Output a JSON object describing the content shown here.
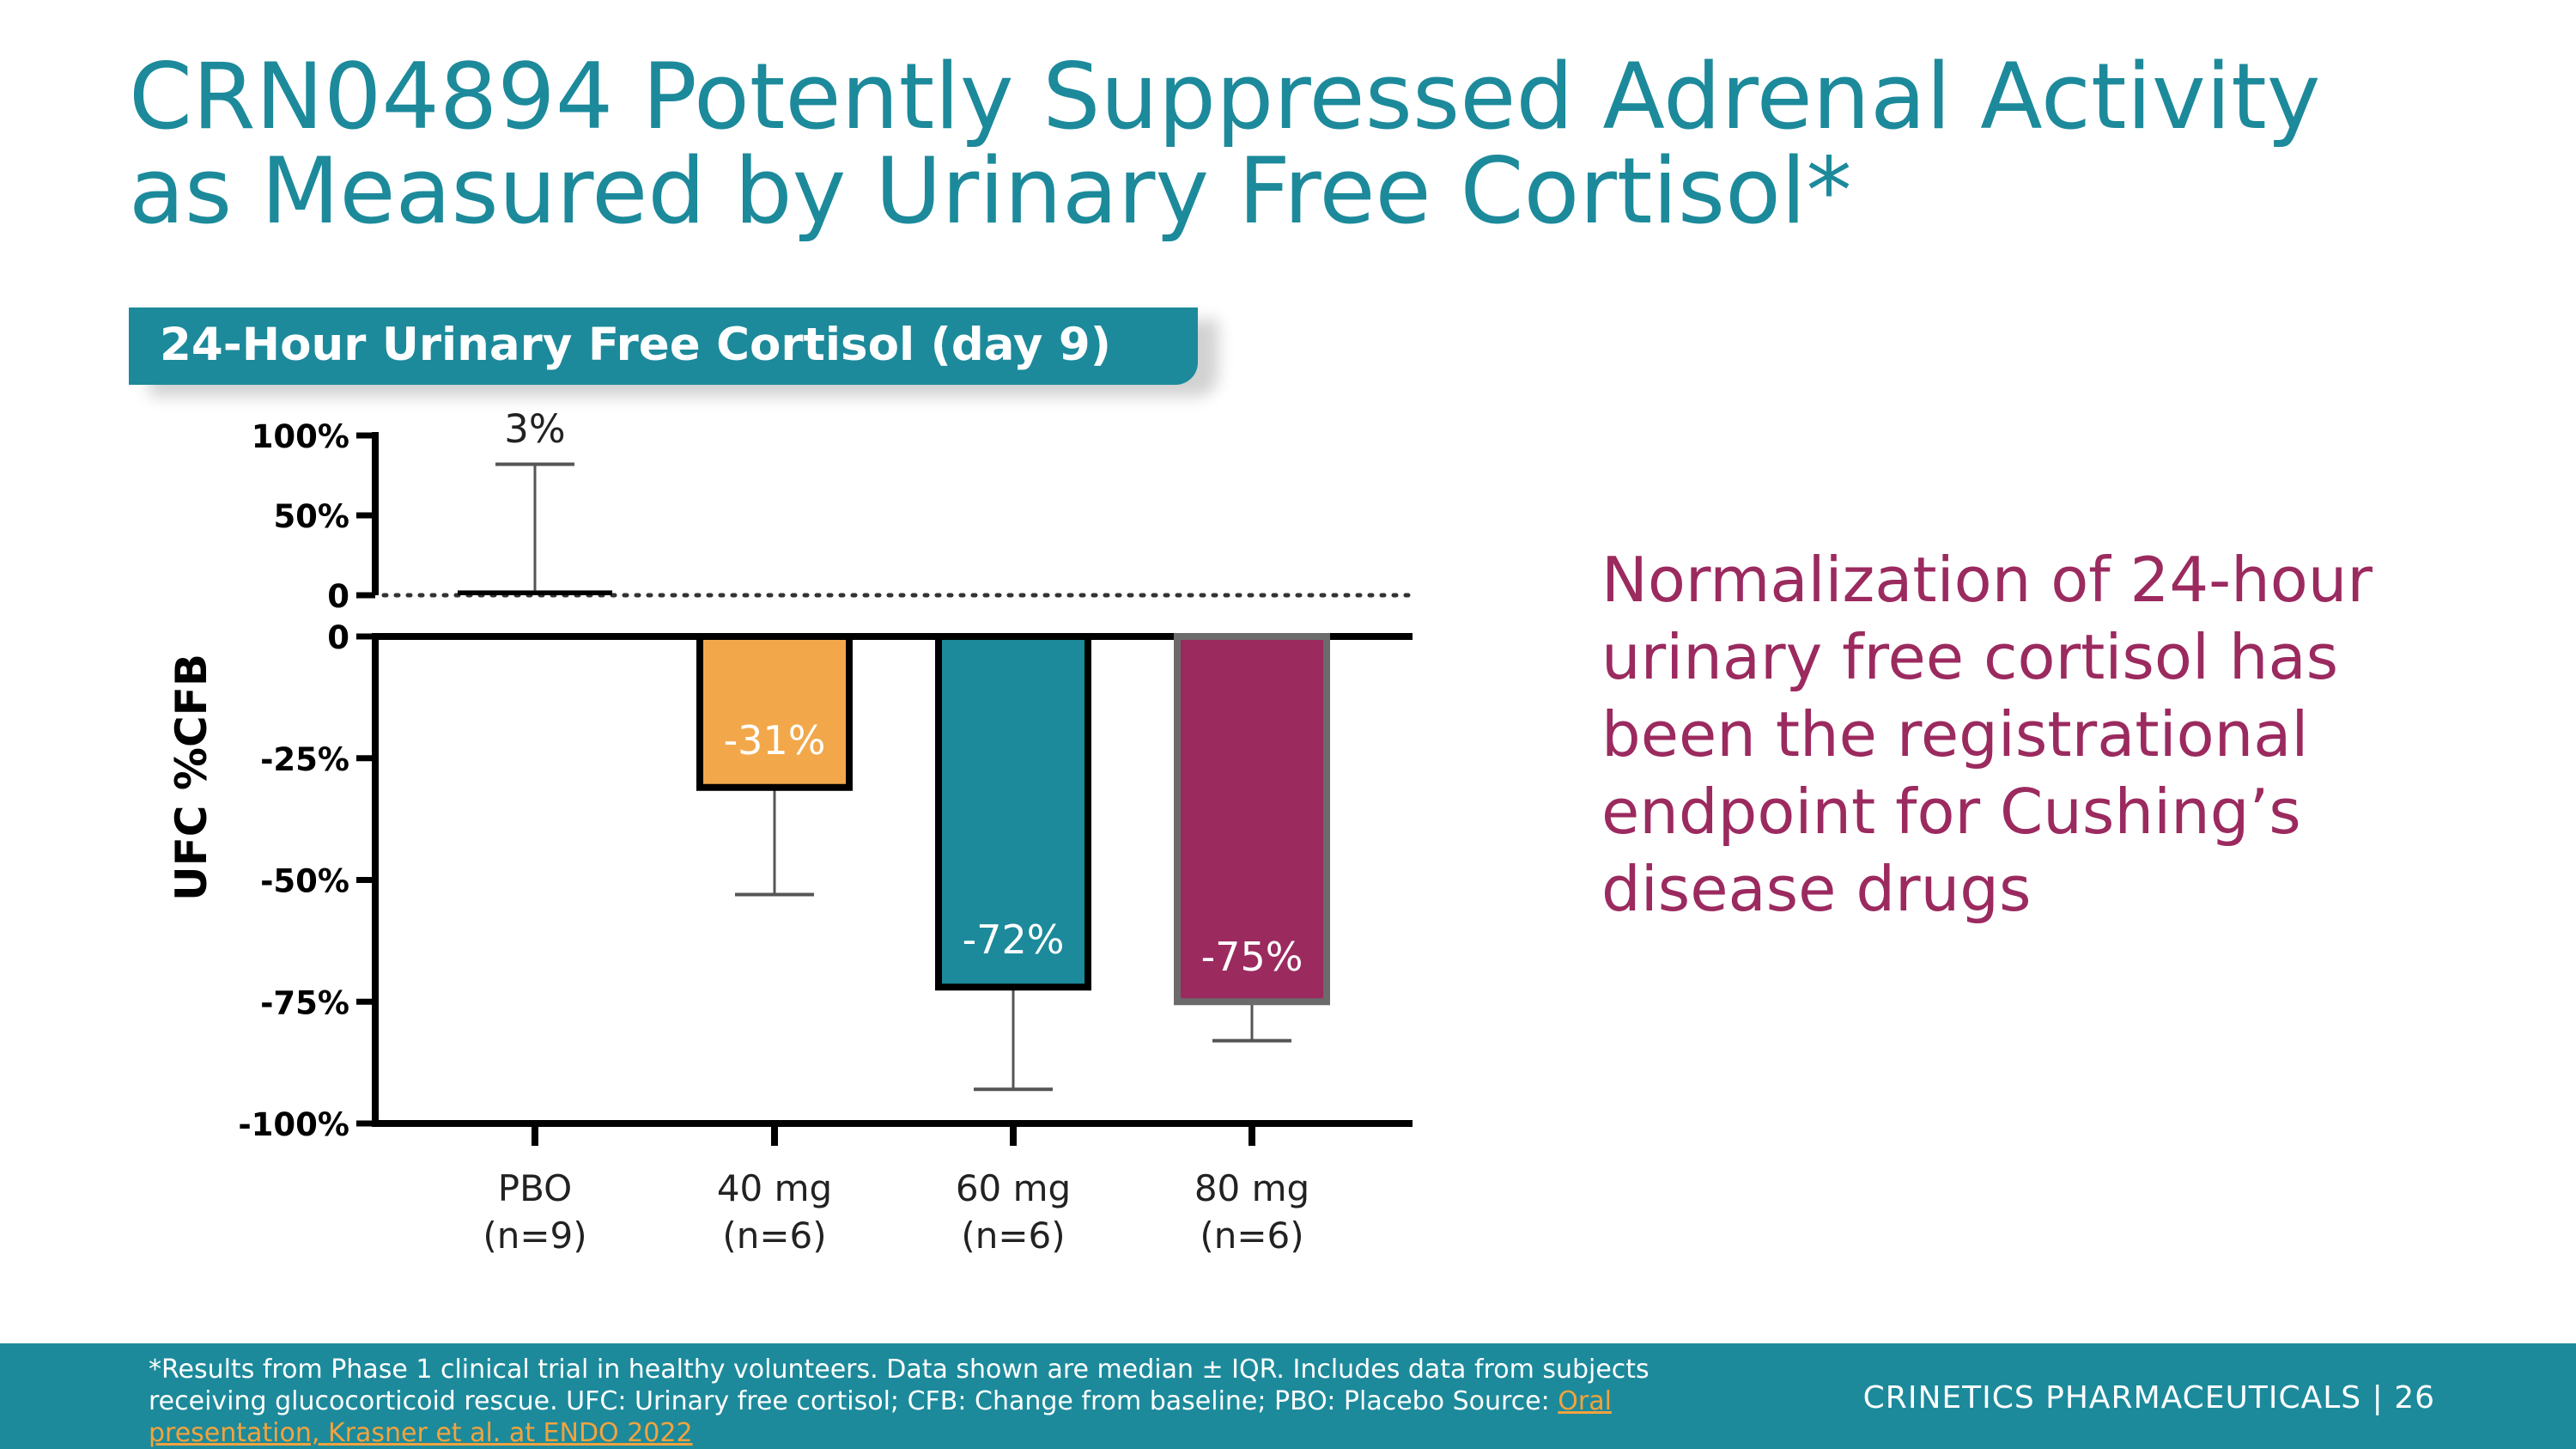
{
  "slide": {
    "title_line1": "CRN04894 Potently Suppressed Adrenal Activity",
    "title_line2": "as Measured by Urinary Free Cortisol*",
    "chart_header": "24-Hour Urinary Free Cortisol (day 9)",
    "side_text": "Normalization of 24-hour urinary free cortisol has been the registrational endpoint for Cushing’s disease drugs",
    "footnote_text": "*Results from Phase 1 clinical trial in healthy volunteers. Data shown are median ± IQR. Includes data from subjects receiving glucocorticoid rescue. UFC: Urinary free cortisol; CFB: Change from baseline; PBO: Placebo Source: ",
    "footnote_link": "Oral presentation, Krasner et al. at ENDO 2022",
    "company": "CRINETICS PHARMACEUTICALS",
    "separator": "|",
    "page_number": "26"
  },
  "colors": {
    "teal": "#1c8a9b",
    "orange": "#f2a84a",
    "magenta": "#9b2a5f",
    "link": "#f2a33e"
  },
  "chart_data": {
    "type": "bar",
    "title": "24-Hour Urinary Free Cortisol (day 9)",
    "ylabel": "UFC %CFB",
    "xlabel": "",
    "categories": [
      "PBO (n=9)",
      "40 mg (n=6)",
      "60 mg (n=6)",
      "80 mg (n=6)"
    ],
    "category_lines": [
      [
        "PBO",
        "(n=9)"
      ],
      [
        "40 mg",
        "(n=6)"
      ],
      [
        "60 mg",
        "(n=6)"
      ],
      [
        "80 mg",
        "(n=6)"
      ]
    ],
    "values": [
      3,
      -31,
      -72,
      -75
    ],
    "value_labels": [
      "3%",
      "-31%",
      "-72%",
      "-75%"
    ],
    "error_bar_ends": [
      82,
      -53,
      -93,
      -83
    ],
    "bar_colors": [
      "#ffffff",
      "#f2a84a",
      "#1c8a9b",
      "#9b2a5f"
    ],
    "upper_axis": {
      "ylim": [
        0,
        100
      ],
      "ticks": [
        100,
        50,
        0
      ],
      "tick_labels": [
        "100%",
        "50%",
        "0"
      ]
    },
    "lower_axis": {
      "ylim": [
        -100,
        0
      ],
      "ticks": [
        0,
        -25,
        -50,
        -75,
        -100
      ],
      "tick_labels": [
        "0",
        "-25%",
        "-50%",
        "-75%",
        "-100%"
      ]
    },
    "note": "Broken y-axis: upper segment 0 to 100%, lower segment -100% to 0. Values are median % change from baseline; whiskers show IQR bound."
  }
}
